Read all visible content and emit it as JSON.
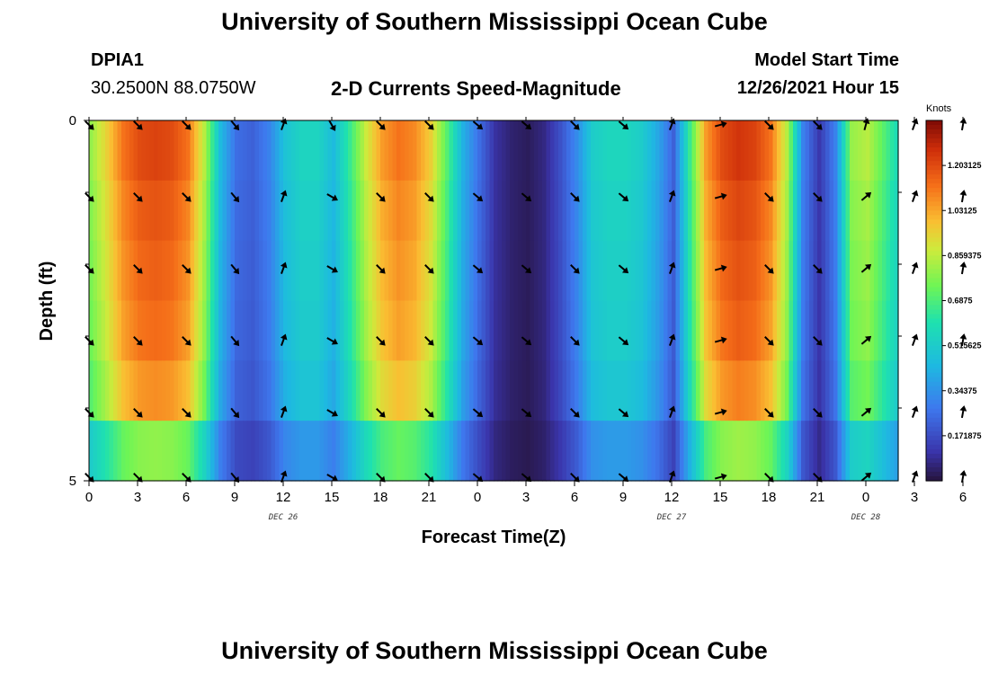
{
  "header": {
    "title": "University of Southern Mississippi Ocean Cube",
    "station": "DPIA1",
    "coords": "30.2500N  88.0750W",
    "subtitle": "2-D Currents Speed-Magnitude",
    "model_start_label": "Model Start Time",
    "model_start_value": "12/26/2021 Hour 15",
    "footer_title": "University of Southern Mississippi Ocean Cube"
  },
  "chart_data": {
    "type": "heatmap",
    "title": "2-D Currents Speed-Magnitude",
    "xlabel": "Forecast Time(Z)",
    "ylabel": "Depth (ft)",
    "colorbar_label": "Knots",
    "x_ticks": [
      "0",
      "3",
      "6",
      "9",
      "12",
      "15",
      "18",
      "21",
      "0",
      "3",
      "6",
      "9",
      "12",
      "15",
      "18",
      "21",
      "0",
      "3",
      "6"
    ],
    "y_ticks": [
      "0",
      "5"
    ],
    "ylim": [
      0,
      5
    ],
    "date_labels": [
      {
        "label": "DEC 26",
        "hour_index": 12
      },
      {
        "label": "DEC 27",
        "hour_index": 36
      },
      {
        "label": "DEC 28",
        "hour_index": 48
      }
    ],
    "colorbar_ticks": [
      "1.203125",
      "1.03125",
      "0.859375",
      "0.6875",
      "0.515625",
      "0.34375",
      "0.171875"
    ],
    "colorbar_range": [
      0.0,
      1.375
    ],
    "speed_by_hour": [
      0.8,
      0.95,
      1.12,
      1.2,
      1.22,
      1.2,
      1.12,
      0.85,
      0.45,
      0.25,
      0.22,
      0.3,
      0.48,
      0.55,
      0.55,
      0.45,
      0.65,
      0.88,
      1.05,
      1.12,
      1.08,
      0.95,
      0.7,
      0.42,
      0.25,
      0.1,
      0.05,
      0.03,
      0.07,
      0.18,
      0.32,
      0.52,
      0.56,
      0.56,
      0.52,
      0.4,
      0.22,
      0.65,
      1.05,
      1.2,
      1.25,
      1.22,
      1.12,
      0.85,
      0.3,
      0.12,
      0.3,
      0.8,
      0.85,
      0.7,
      0.55
    ],
    "depth_factor": [
      1.0,
      0.97,
      0.95,
      0.93,
      0.88,
      0.65
    ],
    "arrow_hours": [
      0,
      3,
      6,
      9,
      12,
      15,
      18,
      21,
      24,
      27,
      30,
      33,
      36,
      39,
      42,
      45,
      48,
      51,
      54
    ],
    "arrow_angles_deg": [
      45,
      45,
      45,
      50,
      -70,
      30,
      45,
      45,
      40,
      40,
      45,
      40,
      -70,
      -15,
      45,
      45,
      -40,
      -70,
      -80
    ],
    "surface_arrow_angles_deg": [
      45,
      45,
      45,
      50,
      -70,
      60,
      45,
      45,
      40,
      40,
      45,
      40,
      -70,
      -15,
      45,
      45,
      -75,
      -70,
      -80
    ]
  }
}
